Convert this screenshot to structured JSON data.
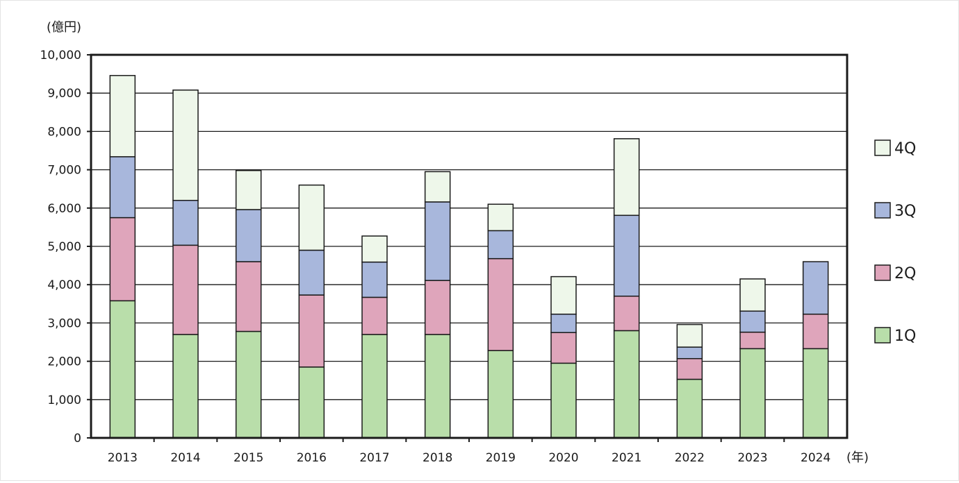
{
  "chart_data": {
    "type": "bar",
    "stacked": true,
    "title": "",
    "unit_label": "(億円)",
    "xlabel": "(年)",
    "ylabel": "",
    "ylim": [
      0,
      10000
    ],
    "yticks": [
      0,
      1000,
      2000,
      3000,
      4000,
      5000,
      6000,
      7000,
      8000,
      9000,
      10000
    ],
    "ytick_labels": [
      "0",
      "1,000",
      "2,000",
      "3,000",
      "4,000",
      "5,000",
      "6,000",
      "7,000",
      "8,000",
      "9,000",
      "10,000"
    ],
    "grid": true,
    "legend_position": "right",
    "categories": [
      "2013",
      "2014",
      "2015",
      "2016",
      "2017",
      "2018",
      "2019",
      "2020",
      "2021",
      "2022",
      "2023",
      "2024"
    ],
    "series": [
      {
        "name": "1Q",
        "color": "#b9deaa",
        "values": [
          3580,
          2700,
          2780,
          1850,
          2700,
          2700,
          2280,
          1950,
          2800,
          1530,
          2330,
          2330
        ]
      },
      {
        "name": "2Q",
        "color": "#dfa5bb",
        "values": [
          2170,
          2330,
          1820,
          1880,
          970,
          1410,
          2400,
          800,
          900,
          540,
          430,
          900
        ]
      },
      {
        "name": "3Q",
        "color": "#a8b7dc",
        "values": [
          1590,
          1170,
          1360,
          1170,
          920,
          2050,
          730,
          480,
          2110,
          300,
          550,
          1370
        ]
      },
      {
        "name": "4Q",
        "color": "#eef7ea",
        "values": [
          2120,
          2880,
          1020,
          1700,
          680,
          790,
          690,
          980,
          2000,
          590,
          840,
          0
        ]
      }
    ],
    "legend_order": [
      "4Q",
      "3Q",
      "2Q",
      "1Q"
    ]
  }
}
